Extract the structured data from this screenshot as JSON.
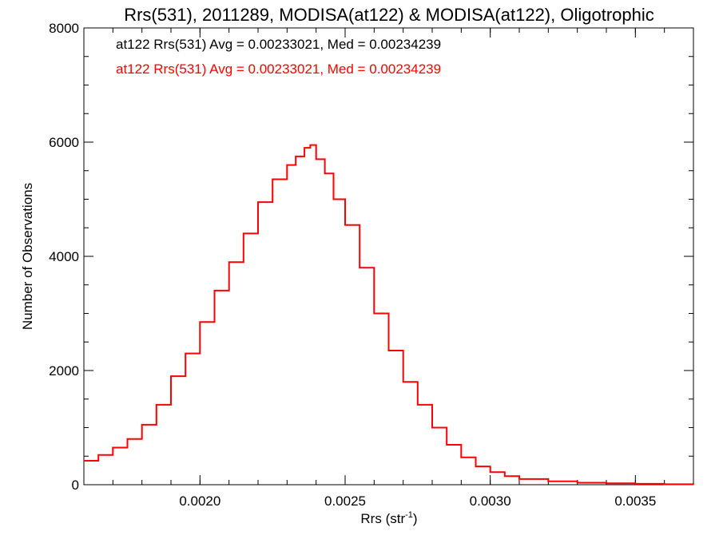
{
  "chart_data": {
    "type": "line",
    "title": "Rrs(531), 2011289, MODISA(at122) & MODISA(at122), Oligotrophic",
    "xlabel_main": "Rrs (str",
    "xlabel_sup": "-1",
    "xlabel_close": ")",
    "ylabel": "Number of Observations",
    "xlim": [
      0.0016,
      0.0037
    ],
    "ylim": [
      0,
      8000
    ],
    "xticks": [
      0.002,
      0.0025,
      0.003,
      0.0035
    ],
    "xtick_labels": [
      "0.0020",
      "0.0025",
      "0.0030",
      "0.0035"
    ],
    "xminor_step": 0.0001,
    "yticks": [
      0,
      2000,
      4000,
      6000,
      8000
    ],
    "ytick_labels": [
      "0",
      "2000",
      "4000",
      "6000",
      "8000"
    ],
    "yminor_step": 500,
    "annotations": [
      {
        "text": "at122 Rrs(531) Avg = 0.00233021, Med = 0.00234239",
        "color": "#000000"
      },
      {
        "text": "at122 Rrs(531) Avg = 0.00233021, Med = 0.00234239",
        "color": "#ff0000"
      }
    ],
    "series": [
      {
        "color": "#ff0000",
        "x": [
          0.0016,
          0.00165,
          0.0017,
          0.00175,
          0.0018,
          0.00185,
          0.0019,
          0.00195,
          0.002,
          0.00205,
          0.0021,
          0.00215,
          0.0022,
          0.00225,
          0.0023,
          0.00233,
          0.00236,
          0.00238,
          0.0024,
          0.00243,
          0.00246,
          0.0025,
          0.00255,
          0.0026,
          0.00265,
          0.0027,
          0.00275,
          0.0028,
          0.00285,
          0.0029,
          0.00295,
          0.003,
          0.00305,
          0.0031,
          0.0032,
          0.0033,
          0.0034,
          0.0035,
          0.0036,
          0.0037
        ],
        "y": [
          420,
          520,
          650,
          800,
          1050,
          1400,
          1900,
          2300,
          2850,
          3400,
          3900,
          4400,
          4950,
          5350,
          5600,
          5750,
          5900,
          5950,
          5700,
          5450,
          5000,
          4550,
          3800,
          3000,
          2350,
          1800,
          1400,
          1000,
          700,
          480,
          320,
          220,
          150,
          100,
          60,
          35,
          25,
          15,
          8,
          5
        ]
      }
    ]
  }
}
